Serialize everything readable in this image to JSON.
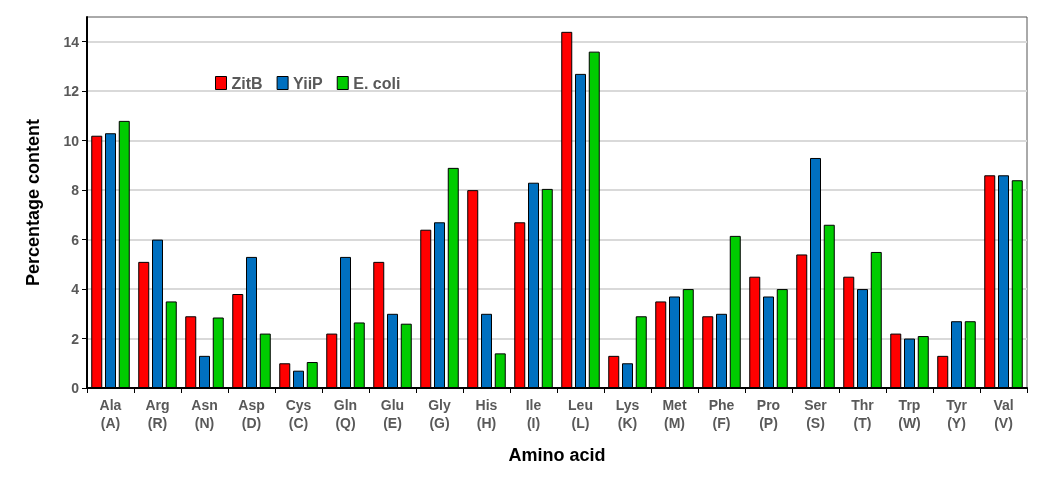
{
  "chart_data": {
    "type": "bar",
    "xlabel": "Amino acid",
    "ylabel": "Percentage content",
    "categories": [
      "Ala\n(A)",
      "Arg\n(R)",
      "Asn\n(N)",
      "Asp\n(D)",
      "Cys\n(C)",
      "Gln\n(Q)",
      "Glu\n(E)",
      "Gly\n(G)",
      "His\n(H)",
      "Ile\n(I)",
      "Leu\n(L)",
      "Lys\n(K)",
      "Met\n(M)",
      "Phe\n(F)",
      "Pro\n(P)",
      "Ser\n(S)",
      "Thr\n(T)",
      "Trp\n(W)",
      "Tyr\n(Y)",
      "Val\n(V)"
    ],
    "series": [
      {
        "name": "ZitB",
        "color": "#ff0000",
        "values": [
          10.2,
          5.1,
          2.9,
          3.8,
          1.0,
          2.2,
          5.1,
          6.4,
          8.0,
          6.7,
          14.4,
          1.3,
          3.5,
          2.9,
          4.5,
          5.4,
          4.5,
          2.2,
          1.3,
          8.6
        ]
      },
      {
        "name": "YiiP",
        "color": "#0070c0",
        "values": [
          10.3,
          6.0,
          1.3,
          5.3,
          0.7,
          5.3,
          3.0,
          6.7,
          3.0,
          8.3,
          12.7,
          1.0,
          3.7,
          3.0,
          3.7,
          9.3,
          4.0,
          2.0,
          2.7,
          8.6
        ]
      },
      {
        "name": "E. coli",
        "color": "#00cc00",
        "values": [
          10.8,
          3.5,
          2.85,
          2.2,
          1.05,
          2.65,
          2.6,
          8.9,
          1.4,
          8.05,
          13.6,
          2.9,
          4.0,
          6.15,
          4.0,
          6.6,
          5.5,
          2.1,
          2.7,
          8.4
        ]
      }
    ],
    "ylim": [
      0,
      15
    ],
    "yticks": [
      0,
      2,
      4,
      6,
      8,
      10,
      12,
      14
    ],
    "grid": "y",
    "legend": "top left"
  }
}
